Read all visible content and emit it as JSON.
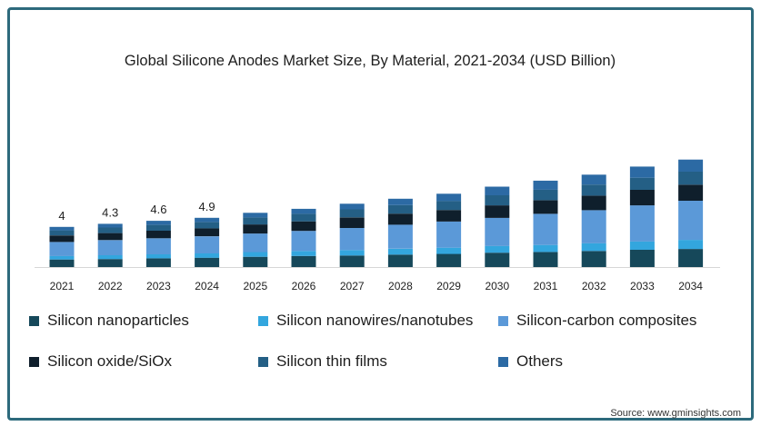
{
  "chart_data": {
    "type": "bar",
    "stacked": true,
    "title": "Global Silicone Anodes Market Size, By Material, 2021-2034 (USD Billion)",
    "xlabel": "",
    "ylabel": "",
    "categories": [
      "2021",
      "2022",
      "2023",
      "2024",
      "2025",
      "2026",
      "2027",
      "2028",
      "2029",
      "2030",
      "2031",
      "2032",
      "2033",
      "2034"
    ],
    "totals_labels": [
      "4",
      "4.3",
      "4.6",
      "4.9",
      "",
      "",
      "",
      "",
      "",
      "",
      "",
      "",
      "",
      ""
    ],
    "ylim": [
      0,
      17
    ],
    "grid": false,
    "legend_position": "bottom",
    "series": [
      {
        "name": "Silicon nanoparticles",
        "color": "#16485a",
        "values": [
          0.75,
          0.8,
          0.87,
          0.93,
          1.02,
          1.1,
          1.15,
          1.24,
          1.31,
          1.43,
          1.5,
          1.6,
          1.72,
          1.8
        ]
      },
      {
        "name": "Silicon nanowires/nanotubes",
        "color": "#33a6de",
        "values": [
          0.35,
          0.38,
          0.4,
          0.43,
          0.47,
          0.5,
          0.54,
          0.58,
          0.62,
          0.66,
          0.7,
          0.76,
          0.82,
          0.9
        ]
      },
      {
        "name": "Silicon-carbon composites",
        "color": "#5b99d8",
        "values": [
          1.4,
          1.5,
          1.6,
          1.7,
          1.85,
          2.0,
          2.2,
          2.4,
          2.6,
          2.8,
          3.1,
          3.3,
          3.6,
          3.9
        ]
      },
      {
        "name": "Silicon oxide/SiOx",
        "color": "#0f1f2c",
        "values": [
          0.65,
          0.7,
          0.75,
          0.8,
          0.9,
          0.95,
          1.05,
          1.1,
          1.15,
          1.25,
          1.35,
          1.45,
          1.55,
          1.6
        ]
      },
      {
        "name": "Silicon thin films",
        "color": "#245f85",
        "values": [
          0.5,
          0.55,
          0.58,
          0.62,
          0.7,
          0.75,
          0.8,
          0.85,
          0.9,
          1.0,
          1.05,
          1.1,
          1.2,
          1.3
        ]
      },
      {
        "name": "Others",
        "color": "#2c6aa4",
        "values": [
          0.35,
          0.37,
          0.4,
          0.42,
          0.46,
          0.5,
          0.56,
          0.63,
          0.72,
          0.86,
          0.9,
          0.99,
          1.11,
          1.2
        ]
      }
    ]
  },
  "source": "Source: www.gminsights.com"
}
